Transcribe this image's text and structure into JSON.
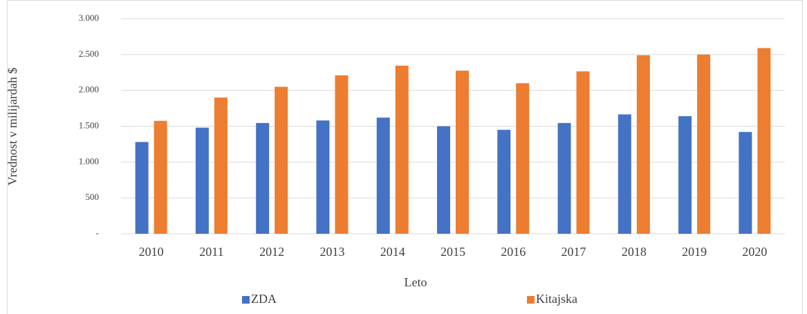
{
  "chart_data": {
    "type": "bar",
    "y_label": "Vrednost v milijardah $",
    "x_label": "Leto",
    "categories": [
      "2010",
      "2011",
      "2012",
      "2013",
      "2014",
      "2015",
      "2016",
      "2017",
      "2018",
      "2019",
      "2020"
    ],
    "series": [
      {
        "name": "ZDA",
        "color": "#4472c4",
        "values": [
          1280,
          1480,
          1545,
          1580,
          1620,
          1500,
          1450,
          1545,
          1665,
          1640,
          1420
        ]
      },
      {
        "name": "Kitajska",
        "color": "#ed7d31",
        "values": [
          1575,
          1900,
          2050,
          2210,
          2345,
          2275,
          2100,
          2265,
          2490,
          2500,
          2590
        ]
      }
    ],
    "ylim": [
      0,
      3000
    ],
    "yticks": [
      {
        "value": 0,
        "label": "-"
      },
      500,
      {
        "value": 1000,
        "label": "1.000"
      },
      {
        "value": 1500,
        "label": "1.500"
      },
      {
        "value": 2000,
        "label": "2.000"
      },
      {
        "value": 2500,
        "label": "2.500"
      },
      {
        "value": 3000,
        "label": "3.000"
      }
    ],
    "grid": true,
    "legend": "bottom"
  }
}
